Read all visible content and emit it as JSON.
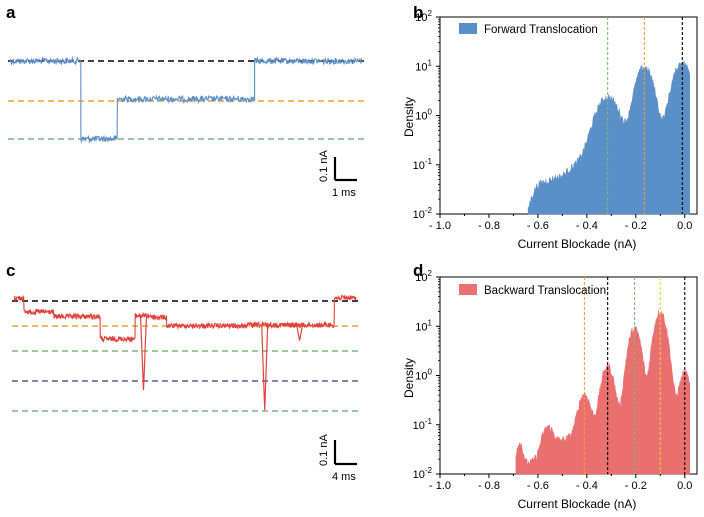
{
  "chart_data": [
    {
      "panel": "a",
      "type": "line",
      "title": "",
      "trace_color": "#5b8fc7",
      "levels": [
        {
          "name": "open",
          "color": "#000000"
        },
        {
          "name": "level-1",
          "color": "#f0a030"
        },
        {
          "name": "level-2",
          "color": "#7cb87c"
        }
      ],
      "segments": [
        {
          "t": [
            0.0,
            1.55
          ],
          "level": 0
        },
        {
          "t": [
            1.55,
            2.35
          ],
          "level": 2.05
        },
        {
          "t": [
            2.35,
            5.35
          ],
          "level": 1.0
        },
        {
          "t": [
            5.35,
            7.7
          ],
          "level": 0
        }
      ],
      "scale_bar": {
        "current_label": "0.1 nA",
        "time_label": "1 ms"
      }
    },
    {
      "panel": "b",
      "type": "area",
      "legend": "Forward Translocation",
      "color": "#5b8fc7",
      "xlabel": "Current Blockade  (nA)",
      "ylabel": "Density",
      "xlim": [
        -1.0,
        0.05
      ],
      "ylim_log10": [
        -2,
        2
      ],
      "x_ticks": [
        "- 1.0",
        "- 0.8",
        "- 0.6",
        "- 0.4",
        "- 0.2",
        "0.0"
      ],
      "x_tick_values": [
        -1.0,
        -0.8,
        -0.6,
        -0.4,
        -0.2,
        0.0
      ],
      "y_tick_exponents": [
        "-2",
        "-1",
        "0",
        "1",
        "2"
      ],
      "y_tick_base": "10",
      "peaks": [
        {
          "center": -0.315,
          "height": 2.2,
          "width": 0.038
        },
        {
          "center": -0.165,
          "height": 9.5,
          "width": 0.028
        },
        {
          "center": -0.01,
          "height": 11.5,
          "width": 0.03
        }
      ],
      "baseline_tail": [
        {
          "x": -0.64,
          "y": 0.012
        },
        {
          "x": -0.6,
          "y": 0.04
        },
        {
          "x": -0.5,
          "y": 0.06
        },
        {
          "x": -0.42,
          "y": 0.12
        }
      ],
      "reference_lines": [
        {
          "x": -0.315,
          "color": "#7cb87c"
        },
        {
          "x": -0.165,
          "color": "#f0a030"
        },
        {
          "x": -0.01,
          "color": "#000000"
        }
      ]
    },
    {
      "panel": "c",
      "type": "line",
      "title": "",
      "trace_color": "#e2413a",
      "levels": [
        {
          "name": "open",
          "color": "#000000"
        },
        {
          "name": "level-1",
          "color": "#f0a030"
        },
        {
          "name": "level-2",
          "color": "#7cb87c"
        },
        {
          "name": "level-3",
          "color": "#5a5a9a"
        },
        {
          "name": "level-4",
          "color": "#7cb87c"
        }
      ],
      "segments": [
        {
          "t": [
            0.0,
            0.3
          ],
          "level": -0.2
        },
        {
          "t": [
            0.3,
            1.2
          ],
          "level": 0.7
        },
        {
          "t": [
            1.2,
            2.6
          ],
          "level": 1.0
        },
        {
          "t": [
            2.6,
            3.65
          ],
          "level": 2.45
        },
        {
          "t": [
            3.65,
            4.15
          ],
          "level": 0.95
        },
        {
          "t": [
            4.15,
            4.6
          ],
          "level": 1.05
        },
        {
          "t": [
            4.6,
            7.0
          ],
          "level": 1.6
        },
        {
          "t": [
            7.0,
            9.65
          ],
          "level": 1.55
        },
        {
          "t": [
            9.65,
            10.3
          ],
          "level": -0.2
        }
      ],
      "spikes": [
        {
          "t": 3.9,
          "depth": 4.8
        },
        {
          "t": 7.55,
          "depth": 5.5
        },
        {
          "t": 8.6,
          "depth": 1.0
        }
      ],
      "scale_bar": {
        "current_label": "0.1 nA",
        "time_label": "4 ms"
      }
    },
    {
      "panel": "d",
      "type": "area",
      "legend": "Backward Translocation",
      "color": "#ea6f70",
      "xlabel": "Current Blockade  (nA)",
      "ylabel": "Density",
      "xlim": [
        -1.0,
        0.05
      ],
      "ylim_log10": [
        -2,
        2
      ],
      "x_ticks": [
        "- 1.0",
        "- 0.8",
        "- 0.6",
        "- 0.4",
        "- 0.2",
        "0.0"
      ],
      "x_tick_values": [
        -1.0,
        -0.8,
        -0.6,
        -0.4,
        -0.2,
        0.0
      ],
      "y_tick_exponents": [
        "-2",
        "-1",
        "0",
        "1",
        "2"
      ],
      "y_tick_base": "10",
      "peaks": [
        {
          "center": -0.675,
          "height": 0.03,
          "width": 0.012
        },
        {
          "center": -0.56,
          "height": 0.06,
          "width": 0.02
        },
        {
          "center": -0.41,
          "height": 0.35,
          "width": 0.02
        },
        {
          "center": -0.315,
          "height": 1.5,
          "width": 0.02
        },
        {
          "center": -0.205,
          "height": 9.0,
          "width": 0.02
        },
        {
          "center": -0.1,
          "height": 20.0,
          "width": 0.02
        },
        {
          "center": 0.0,
          "height": 1.0,
          "width": 0.018
        }
      ],
      "baseline_tail": [
        {
          "x": -0.69,
          "y": 0.012
        },
        {
          "x": -0.6,
          "y": 0.02
        },
        {
          "x": -0.5,
          "y": 0.05
        }
      ],
      "reference_lines": [
        {
          "x": -0.41,
          "color": "#f0a030"
        },
        {
          "x": -0.315,
          "color": "#000000"
        },
        {
          "x": -0.205,
          "color": "#7cb87c"
        },
        {
          "x": -0.1,
          "color": "#f0d030"
        },
        {
          "x": 0.0,
          "color": "#000000"
        }
      ]
    }
  ]
}
